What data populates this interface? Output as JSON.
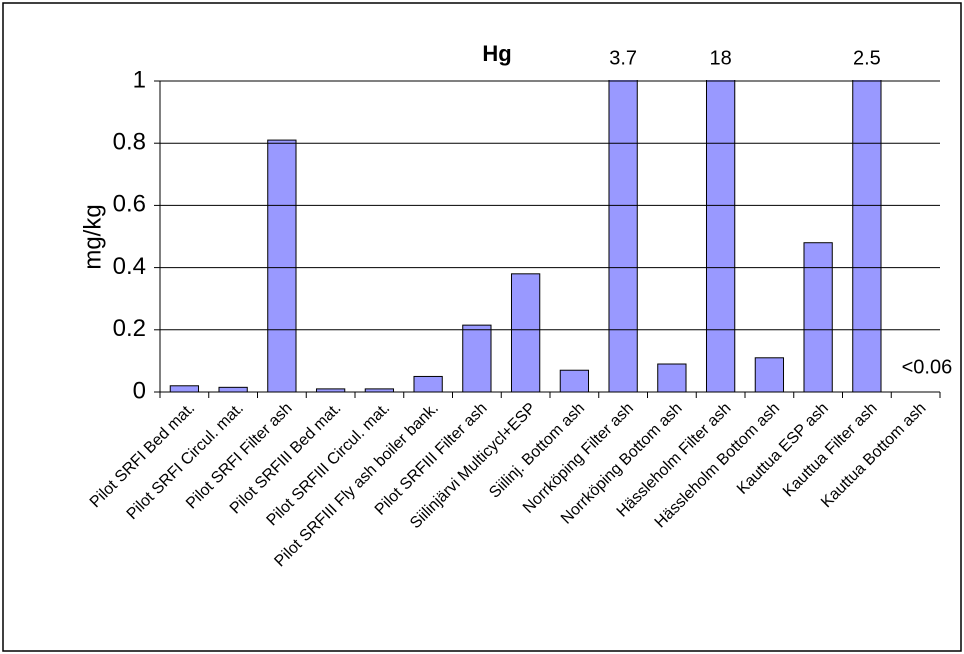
{
  "chart_data": {
    "type": "bar",
    "title": "Hg",
    "y_label": "mg/kg",
    "categories": [
      "Pilot SRFI Bed mat.",
      "Pilot SRFI Circul. mat.",
      "Pilot SRFI Filter ash",
      "Pilot SRFIII Bed mat.",
      "Pilot SRFIII Circul. mat.",
      "Pilot SRFIII Fly ash boiler bank.",
      "Pilot SRFIII Filter ash",
      "Siilinjärvi Multicycl+ESP",
      "Siilinj. Bottom ash",
      "Norrköping Filter ash",
      "Norrköping Bottom ash",
      "Hässleholm Filter ash",
      "Hässleholm Bottom ash",
      "Kauttua ESP ash",
      "Kauttua Filter ash",
      "Kauttua Bottom ash"
    ],
    "values": [
      0.02,
      0.015,
      0.81,
      0.01,
      0.01,
      0.05,
      0.215,
      0.38,
      0.07,
      3.7,
      0.09,
      18,
      0.11,
      0.48,
      2.5,
      null
    ],
    "value_labels": [
      null,
      null,
      null,
      null,
      null,
      null,
      null,
      null,
      null,
      "3.7",
      null,
      "18",
      null,
      null,
      "2.5",
      "<0.06"
    ],
    "color": "#9999ff",
    "ylim": [
      0,
      1
    ],
    "yticks": [
      0,
      0.2,
      0.4,
      0.6,
      0.8,
      1
    ],
    "grid": true
  }
}
